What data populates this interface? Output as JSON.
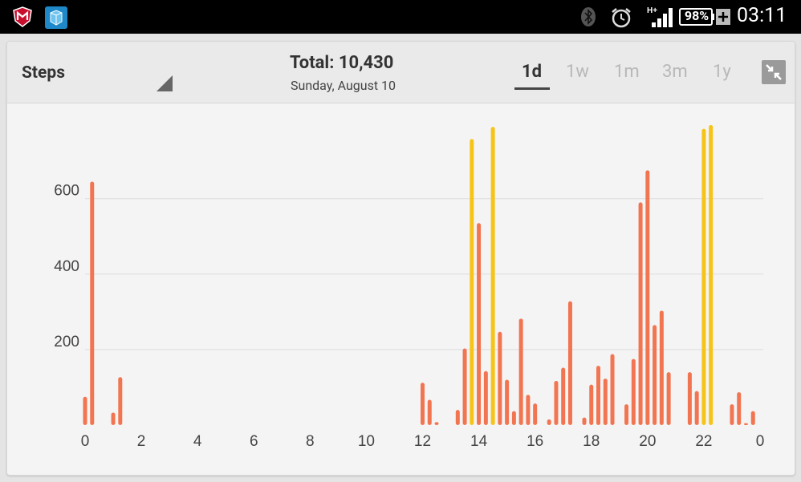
{
  "status_bar": {
    "left_icons": [
      "mcafee-icon",
      "app-cube-icon"
    ],
    "right_icons": [
      "bluetooth-icon",
      "alarm-icon",
      "signal-icon",
      "battery-icon",
      "charging-icon"
    ],
    "network_type": "H+",
    "battery_percent": "98%",
    "time": "03:11"
  },
  "header": {
    "metric": "Steps",
    "total_label": "Total: 10,430",
    "date": "Sunday, August 10",
    "ranges": [
      "1d",
      "1w",
      "1m",
      "3m",
      "1y"
    ],
    "active_range": "1d",
    "collapse_icon": "collapse-arrows-icon"
  },
  "colors": {
    "bar_normal": "#f27552",
    "bar_high": "#f6c419",
    "grid": "#dddddd",
    "axis_text": "#444444"
  },
  "chart_data": {
    "type": "bar",
    "title": "",
    "xlabel": "",
    "ylabel": "",
    "ylim": [
      0,
      700
    ],
    "xlim": [
      0,
      24
    ],
    "y_ticks": [
      200,
      400,
      600
    ],
    "x_tick_labels": [
      "0",
      "2",
      "4",
      "6",
      "8",
      "10",
      "12",
      "14",
      "16",
      "18",
      "20",
      "22",
      "0"
    ],
    "grid": true,
    "series": [
      {
        "color_key": "bar_normal",
        "points": [
          {
            "x": 0.0,
            "y": 75
          },
          {
            "x": 0.25,
            "y": 645
          },
          {
            "x": 1.0,
            "y": 33
          },
          {
            "x": 1.25,
            "y": 127
          },
          {
            "x": 12.0,
            "y": 112
          },
          {
            "x": 12.25,
            "y": 67
          },
          {
            "x": 12.5,
            "y": 8
          },
          {
            "x": 13.25,
            "y": 40
          },
          {
            "x": 13.5,
            "y": 203
          },
          {
            "x": 14.0,
            "y": 535
          },
          {
            "x": 14.25,
            "y": 143
          },
          {
            "x": 14.75,
            "y": 247
          },
          {
            "x": 15.0,
            "y": 120
          },
          {
            "x": 15.25,
            "y": 37
          },
          {
            "x": 15.5,
            "y": 282
          },
          {
            "x": 15.75,
            "y": 80
          },
          {
            "x": 16.0,
            "y": 57
          },
          {
            "x": 16.5,
            "y": 15
          },
          {
            "x": 16.75,
            "y": 117
          },
          {
            "x": 17.0,
            "y": 152
          },
          {
            "x": 17.25,
            "y": 328
          },
          {
            "x": 17.75,
            "y": 20
          },
          {
            "x": 18.0,
            "y": 107
          },
          {
            "x": 18.25,
            "y": 157
          },
          {
            "x": 18.5,
            "y": 123
          },
          {
            "x": 18.75,
            "y": 188
          },
          {
            "x": 19.25,
            "y": 55
          },
          {
            "x": 19.5,
            "y": 175
          },
          {
            "x": 19.75,
            "y": 590
          },
          {
            "x": 20.0,
            "y": 675
          },
          {
            "x": 20.25,
            "y": 265
          },
          {
            "x": 20.5,
            "y": 303
          },
          {
            "x": 20.75,
            "y": 140
          },
          {
            "x": 21.5,
            "y": 140
          },
          {
            "x": 21.75,
            "y": 90
          },
          {
            "x": 23.0,
            "y": 55
          },
          {
            "x": 23.25,
            "y": 87
          },
          {
            "x": 23.5,
            "y": 5
          },
          {
            "x": 23.75,
            "y": 37
          }
        ]
      },
      {
        "color_key": "bar_high",
        "points": [
          {
            "x": 13.75,
            "y": 758
          },
          {
            "x": 14.5,
            "y": 790
          },
          {
            "x": 22.0,
            "y": 785
          },
          {
            "x": 22.25,
            "y": 795
          }
        ]
      }
    ]
  }
}
